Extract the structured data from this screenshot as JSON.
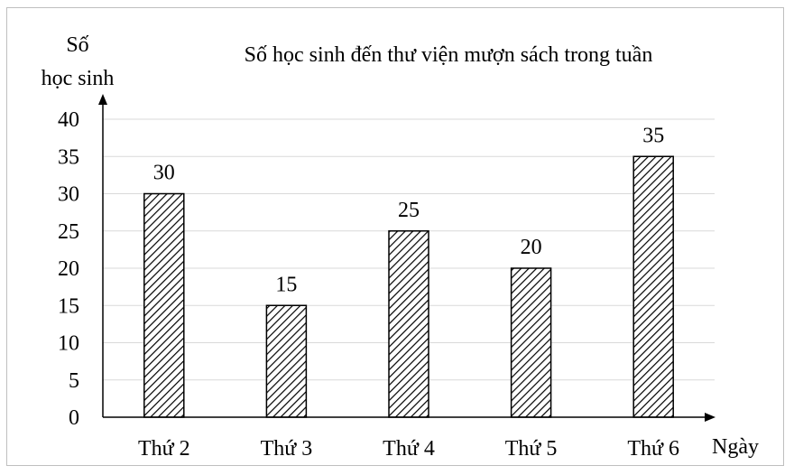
{
  "chart_data": {
    "type": "bar",
    "title": "Số học sinh đến thư viện mượn sách trong tuần",
    "ylabel_lines": [
      "Số",
      "học sinh"
    ],
    "xlabel": "Ngày",
    "categories": [
      "Thứ 2",
      "Thứ 3",
      "Thứ 4",
      "Thứ 5",
      "Thứ 6"
    ],
    "values": [
      30,
      15,
      25,
      20,
      35
    ],
    "data_labels": [
      "30",
      "15",
      "25",
      "20",
      "35"
    ],
    "ylim": [
      0,
      40
    ],
    "yticks": [
      0,
      5,
      10,
      15,
      20,
      25,
      30,
      35,
      40
    ],
    "grid": true,
    "legend": "none",
    "bar_fill": "diagonal hatch",
    "colors": {
      "bar_stroke": "#000000",
      "grid": "#d9d9d9",
      "axis": "#000000",
      "frame": "#bfbfbf"
    }
  }
}
